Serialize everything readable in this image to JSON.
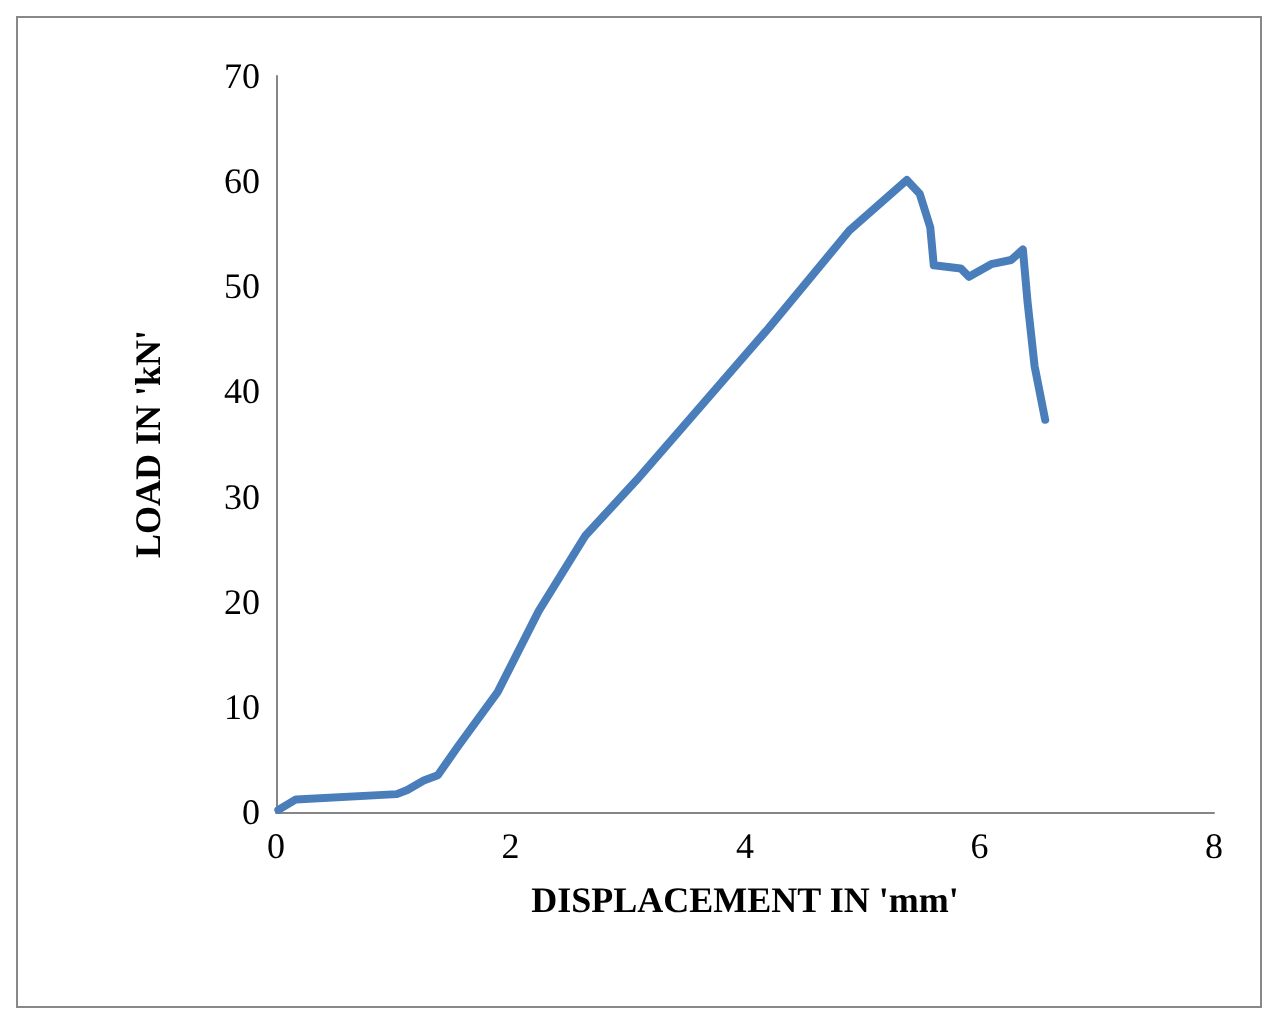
{
  "chart_data": {
    "type": "line",
    "xlabel": "DISPLACEMENT IN 'mm'",
    "ylabel": "LOAD IN 'kN'",
    "xlim": [
      0,
      8
    ],
    "xticks": [
      0,
      2,
      4,
      6,
      8
    ],
    "ylim": [
      0,
      70
    ],
    "yticks": [
      0,
      10,
      20,
      30,
      40,
      50,
      60,
      70
    ],
    "grid": false,
    "marker": "none",
    "line_style": "solid",
    "series": [
      {
        "color": "#4a7ebb",
        "x": [
          0.02,
          0.17,
          1.03,
          1.12,
          1.26,
          1.38,
          1.55,
          1.89,
          2.24,
          2.64,
          3.07,
          3.5,
          4.2,
          4.89,
          5.38,
          5.49,
          5.58,
          5.61,
          5.84,
          5.91,
          6.1,
          6.27,
          6.37,
          6.41,
          6.47,
          6.56
        ],
        "values": [
          0.2,
          1.2,
          1.7,
          2.1,
          3.0,
          3.5,
          6.2,
          11.4,
          19.1,
          26.3,
          31.5,
          37,
          46,
          55.3,
          60.1,
          58.8,
          55.6,
          52.0,
          51.7,
          50.9,
          52.1,
          52.5,
          53.5,
          48.5,
          42.4,
          37.3
        ]
      }
    ]
  }
}
